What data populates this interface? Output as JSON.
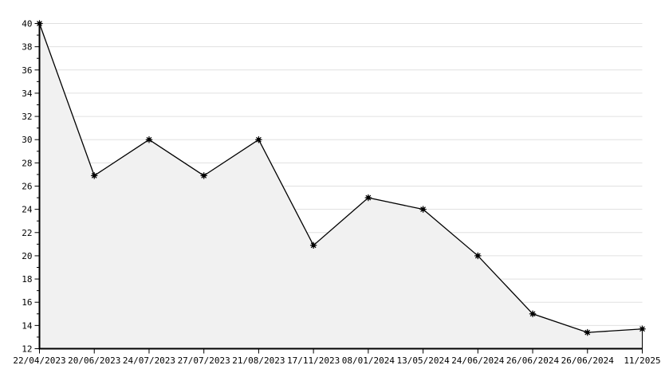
{
  "chart_data": {
    "type": "area",
    "title": "",
    "xlabel": "",
    "ylabel": "",
    "categories": [
      "22/04/2023",
      "20/06/2023",
      "24/07/2023",
      "27/07/2023",
      "21/08/2023",
      "17/11/2023",
      "08/01/2024",
      "13/05/2024",
      "24/06/2024",
      "26/06/2024",
      "26/06/2024",
      "11/2025"
    ],
    "values": [
      40,
      26.9,
      30,
      26.9,
      30,
      20.9,
      25,
      24,
      20,
      15,
      13.4,
      13.7
    ],
    "ylim": [
      12,
      40
    ],
    "y_major_step": 2,
    "y_minor_step": 1,
    "y_tick_labels": [
      "12",
      "14",
      "16",
      "18",
      "20",
      "22",
      "24",
      "26",
      "28",
      "30",
      "32",
      "34",
      "36",
      "38",
      "40"
    ],
    "grid": "horizontal-on",
    "legend": "none",
    "marker_style": "star",
    "colors": {
      "line": "#000000",
      "marker": "#000000",
      "area_fill": "#f1f1f1",
      "gridline": "#e0e0e0",
      "axis": "#000000",
      "background": "#ffffff",
      "label_text": "#000000"
    }
  }
}
